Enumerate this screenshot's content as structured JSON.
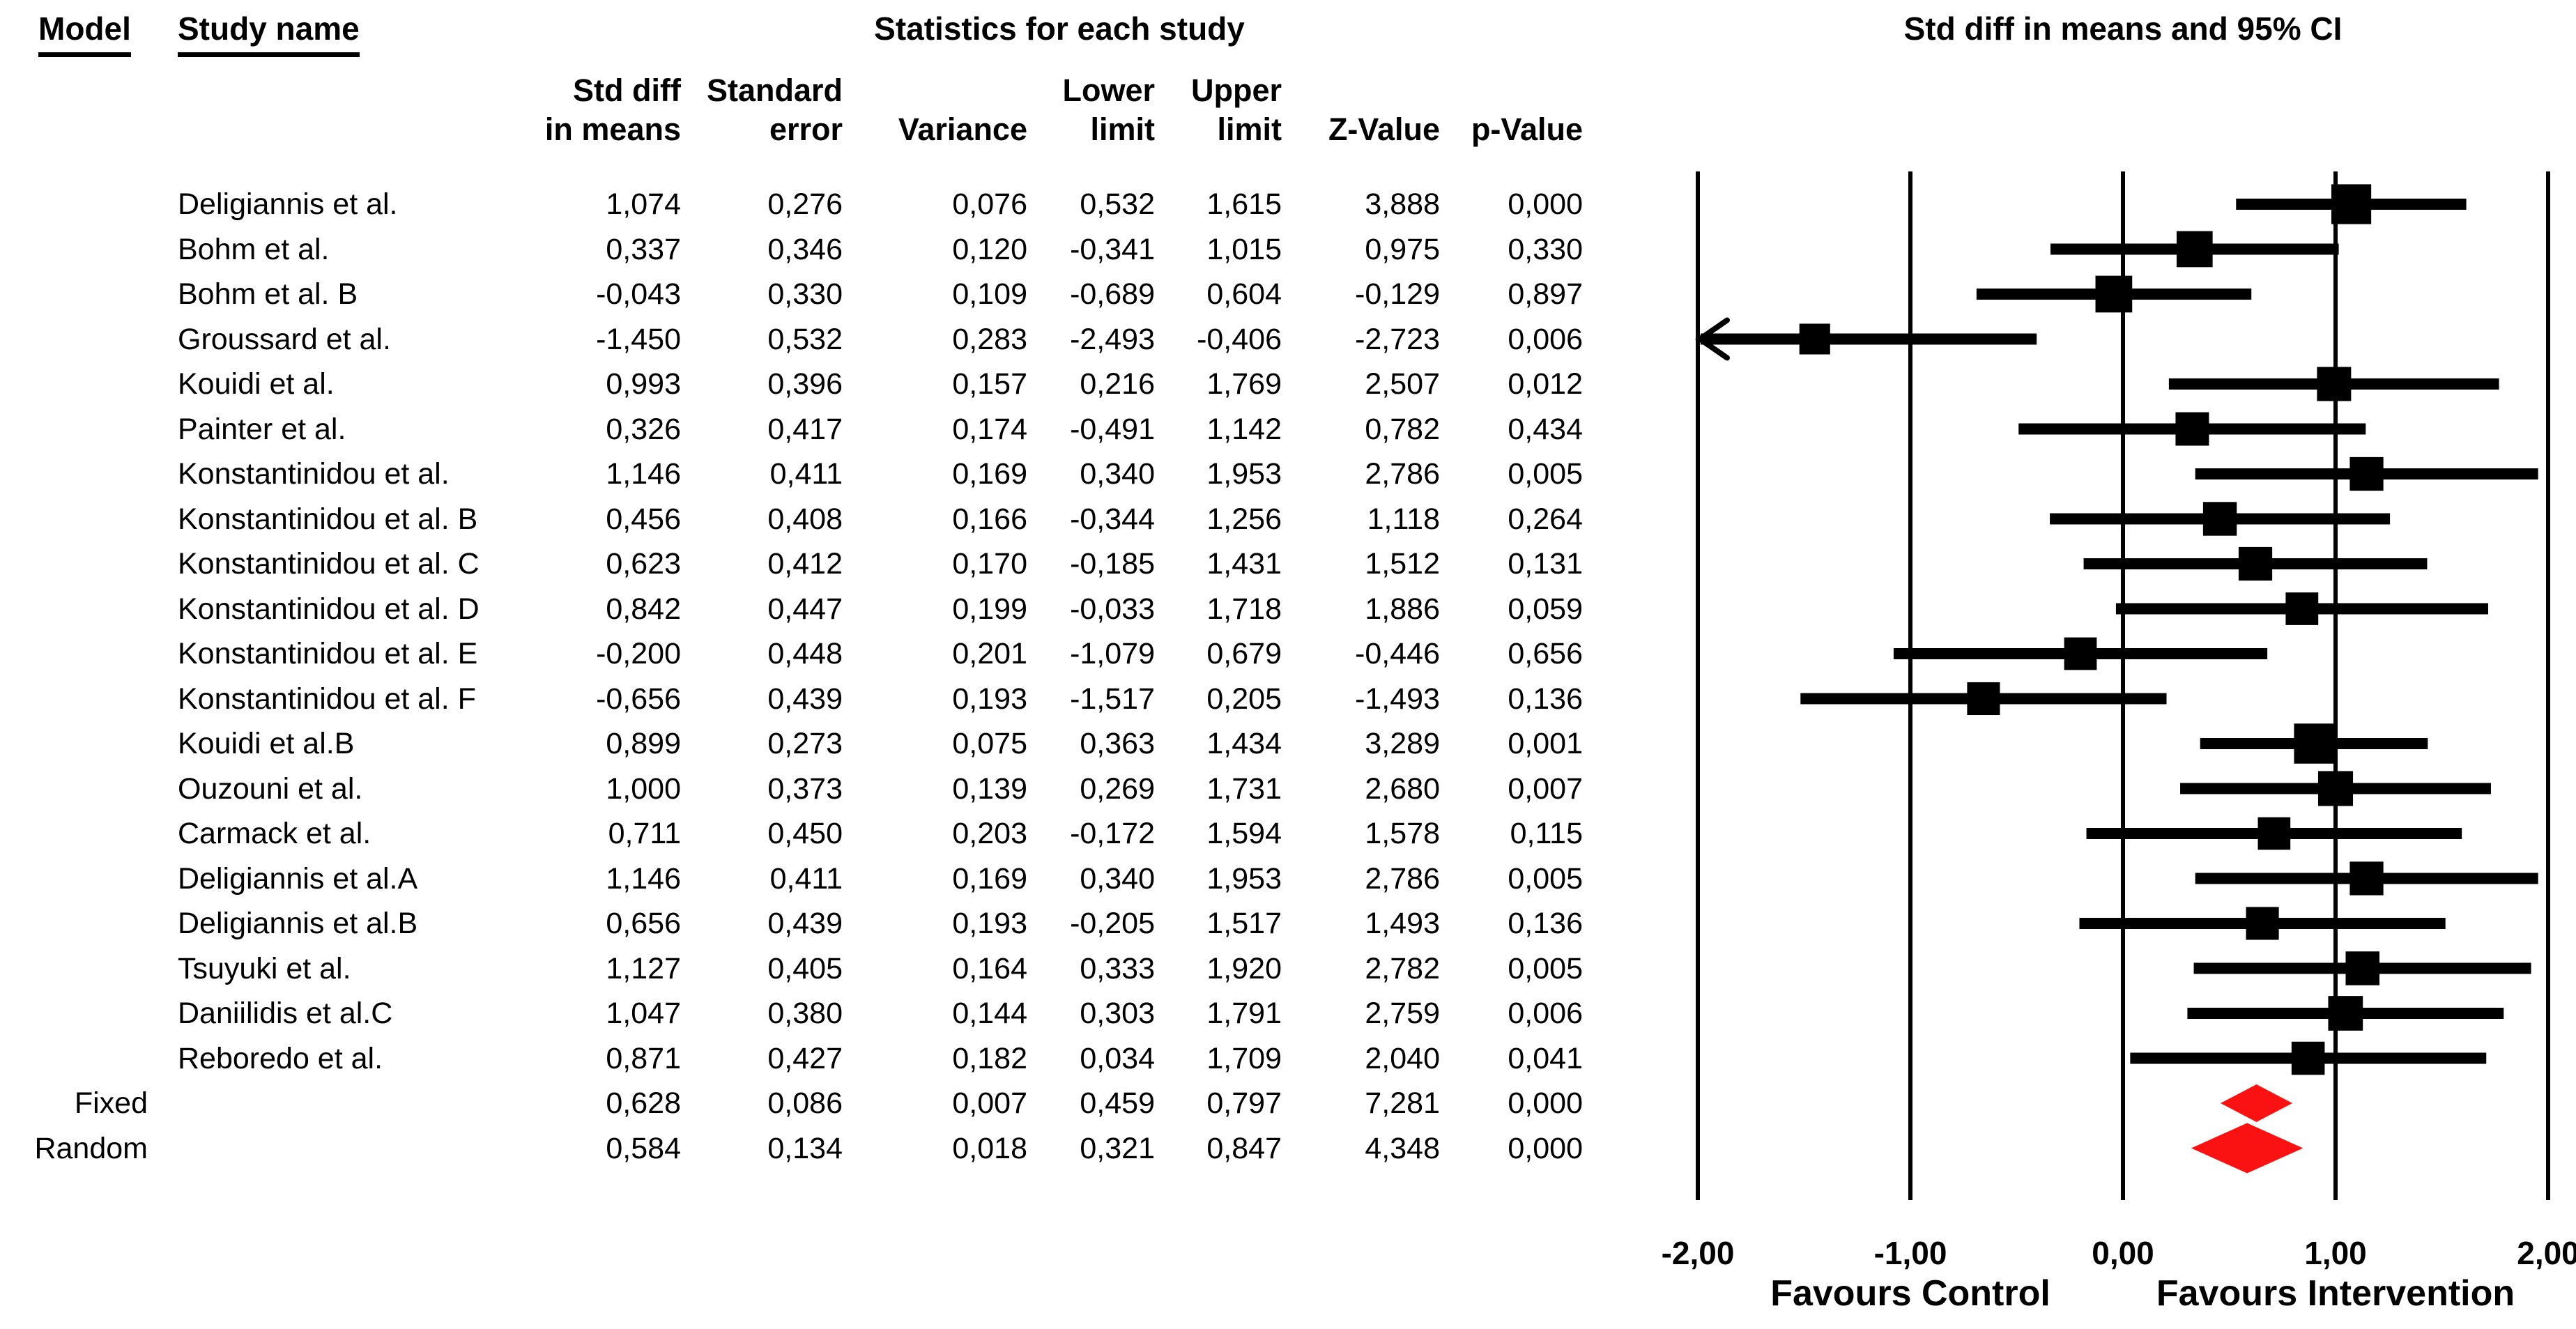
{
  "table": {
    "model_header": "Model",
    "study_header": "Study name",
    "stats_header": "Statistics for each study",
    "columns": [
      {
        "line1": "Std diff",
        "line2": "in means"
      },
      {
        "line1": "Standard",
        "line2": "error"
      },
      {
        "line1": "",
        "line2": "Variance"
      },
      {
        "line1": "Lower",
        "line2": "limit"
      },
      {
        "line1": "Upper",
        "line2": "limit"
      },
      {
        "line1": "",
        "line2": "Z-Value"
      },
      {
        "line1": "",
        "line2": "p-Value"
      }
    ]
  },
  "colors": {
    "marker": "#000000",
    "diamond_red": "#fa1212",
    "text": "#000000",
    "background": "#ffffff"
  },
  "chart_data": {
    "type": "forest",
    "title": "Std diff in means and 95% CI",
    "footer_left": "Favours Control",
    "footer_right": "Favours Intervention",
    "xlim": [
      -2,
      2
    ],
    "x_ticks": [
      -2,
      -1,
      0,
      1,
      2
    ],
    "x_tick_labels": [
      "-2,00",
      "-1,00",
      "0,00",
      "1,00",
      "2,00"
    ],
    "decimal_separator": ",",
    "grid": "vertical-lines-at-ticks",
    "studies": [
      {
        "name": "Deligiannis et al.",
        "std_diff": 1.074,
        "std_err": 0.276,
        "variance": 0.076,
        "lower": 0.532,
        "upper": 1.615,
        "z": 3.888,
        "p": 0.0
      },
      {
        "name": "Bohm et al.",
        "std_diff": 0.337,
        "std_err": 0.346,
        "variance": 0.12,
        "lower": -0.341,
        "upper": 1.015,
        "z": 0.975,
        "p": 0.33
      },
      {
        "name": "Bohm et al. B",
        "std_diff": -0.043,
        "std_err": 0.33,
        "variance": 0.109,
        "lower": -0.689,
        "upper": 0.604,
        "z": -0.129,
        "p": 0.897
      },
      {
        "name": "Groussard et al.",
        "std_diff": -1.45,
        "std_err": 0.532,
        "variance": 0.283,
        "lower": -2.493,
        "upper": -0.406,
        "z": -2.723,
        "p": 0.006
      },
      {
        "name": "Kouidi et al.",
        "std_diff": 0.993,
        "std_err": 0.396,
        "variance": 0.157,
        "lower": 0.216,
        "upper": 1.769,
        "z": 2.507,
        "p": 0.012
      },
      {
        "name": "Painter et al.",
        "std_diff": 0.326,
        "std_err": 0.417,
        "variance": 0.174,
        "lower": -0.491,
        "upper": 1.142,
        "z": 0.782,
        "p": 0.434
      },
      {
        "name": "Konstantinidou et al.",
        "std_diff": 1.146,
        "std_err": 0.411,
        "variance": 0.169,
        "lower": 0.34,
        "upper": 1.953,
        "z": 2.786,
        "p": 0.005
      },
      {
        "name": "Konstantinidou et al. B",
        "std_diff": 0.456,
        "std_err": 0.408,
        "variance": 0.166,
        "lower": -0.344,
        "upper": 1.256,
        "z": 1.118,
        "p": 0.264
      },
      {
        "name": "Konstantinidou et al. C",
        "std_diff": 0.623,
        "std_err": 0.412,
        "variance": 0.17,
        "lower": -0.185,
        "upper": 1.431,
        "z": 1.512,
        "p": 0.131
      },
      {
        "name": "Konstantinidou et al. D",
        "std_diff": 0.842,
        "std_err": 0.447,
        "variance": 0.199,
        "lower": -0.033,
        "upper": 1.718,
        "z": 1.886,
        "p": 0.059
      },
      {
        "name": "Konstantinidou et al. E",
        "std_diff": -0.2,
        "std_err": 0.448,
        "variance": 0.201,
        "lower": -1.079,
        "upper": 0.679,
        "z": -0.446,
        "p": 0.656
      },
      {
        "name": "Konstantinidou et al. F",
        "std_diff": -0.656,
        "std_err": 0.439,
        "variance": 0.193,
        "lower": -1.517,
        "upper": 0.205,
        "z": -1.493,
        "p": 0.136
      },
      {
        "name": "Kouidi et al.B",
        "std_diff": 0.899,
        "std_err": 0.273,
        "variance": 0.075,
        "lower": 0.363,
        "upper": 1.434,
        "z": 3.289,
        "p": 0.001
      },
      {
        "name": "Ouzouni et al.",
        "std_diff": 1.0,
        "std_err": 0.373,
        "variance": 0.139,
        "lower": 0.269,
        "upper": 1.731,
        "z": 2.68,
        "p": 0.007
      },
      {
        "name": "Carmack et al.",
        "std_diff": 0.711,
        "std_err": 0.45,
        "variance": 0.203,
        "lower": -0.172,
        "upper": 1.594,
        "z": 1.578,
        "p": 0.115
      },
      {
        "name": "Deligiannis et al.A",
        "std_diff": 1.146,
        "std_err": 0.411,
        "variance": 0.169,
        "lower": 0.34,
        "upper": 1.953,
        "z": 2.786,
        "p": 0.005
      },
      {
        "name": "Deligiannis et al.B",
        "std_diff": 0.656,
        "std_err": 0.439,
        "variance": 0.193,
        "lower": -0.205,
        "upper": 1.517,
        "z": 1.493,
        "p": 0.136
      },
      {
        "name": "Tsuyuki et al.",
        "std_diff": 1.127,
        "std_err": 0.405,
        "variance": 0.164,
        "lower": 0.333,
        "upper": 1.92,
        "z": 2.782,
        "p": 0.005
      },
      {
        "name": "Daniilidis et al.C",
        "std_diff": 1.047,
        "std_err": 0.38,
        "variance": 0.144,
        "lower": 0.303,
        "upper": 1.791,
        "z": 2.759,
        "p": 0.006
      },
      {
        "name": "Reboredo et al.",
        "std_diff": 0.871,
        "std_err": 0.427,
        "variance": 0.182,
        "lower": 0.034,
        "upper": 1.709,
        "z": 2.04,
        "p": 0.041
      }
    ],
    "summaries": [
      {
        "model": "Fixed",
        "std_diff": 0.628,
        "std_err": 0.086,
        "variance": 0.007,
        "lower": 0.459,
        "upper": 0.797,
        "z": 7.281,
        "p": 0.0
      },
      {
        "model": "Random",
        "std_diff": 0.584,
        "std_err": 0.134,
        "variance": 0.018,
        "lower": 0.321,
        "upper": 0.847,
        "z": 4.348,
        "p": 0.0
      }
    ]
  }
}
